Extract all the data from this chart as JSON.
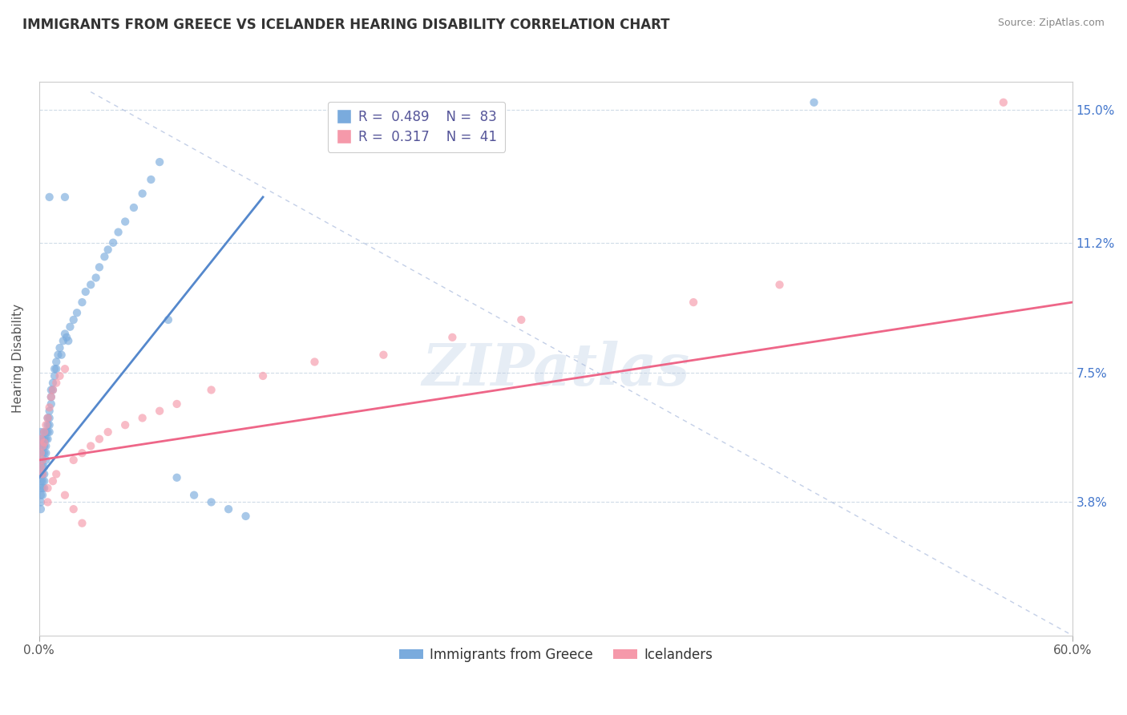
{
  "title": "IMMIGRANTS FROM GREECE VS ICELANDER HEARING DISABILITY CORRELATION CHART",
  "source": "Source: ZipAtlas.com",
  "ylabel": "Hearing Disability",
  "legend_labels": [
    "Immigrants from Greece",
    "Icelanders"
  ],
  "r_blue": 0.489,
  "n_blue": 83,
  "r_pink": 0.317,
  "n_pink": 41,
  "xlim": [
    0.0,
    0.6
  ],
  "ylim": [
    0.0,
    0.158
  ],
  "ytick_labels": [
    "3.8%",
    "7.5%",
    "11.2%",
    "15.0%"
  ],
  "ytick_values": [
    0.038,
    0.075,
    0.112,
    0.15
  ],
  "background_color": "#ffffff",
  "blue_color": "#5588cc",
  "blue_scatter_color": "#7aabdd",
  "pink_color": "#ee6688",
  "pink_scatter_color": "#f599aa",
  "title_fontsize": 12,
  "axis_label_fontsize": 11,
  "tick_fontsize": 11,
  "legend_fontsize": 12,
  "watermark": "ZIPatlas",
  "blue_points_x": [
    0.001,
    0.001,
    0.001,
    0.001,
    0.001,
    0.001,
    0.001,
    0.001,
    0.001,
    0.001,
    0.001,
    0.001,
    0.002,
    0.002,
    0.002,
    0.002,
    0.002,
    0.002,
    0.002,
    0.002,
    0.002,
    0.003,
    0.003,
    0.003,
    0.003,
    0.003,
    0.003,
    0.003,
    0.003,
    0.004,
    0.004,
    0.004,
    0.004,
    0.004,
    0.005,
    0.005,
    0.005,
    0.005,
    0.006,
    0.006,
    0.006,
    0.006,
    0.007,
    0.007,
    0.007,
    0.008,
    0.008,
    0.009,
    0.009,
    0.01,
    0.01,
    0.011,
    0.012,
    0.013,
    0.014,
    0.015,
    0.016,
    0.017,
    0.018,
    0.02,
    0.022,
    0.025,
    0.027,
    0.03,
    0.033,
    0.035,
    0.038,
    0.04,
    0.043,
    0.046,
    0.05,
    0.055,
    0.06,
    0.065,
    0.07,
    0.075,
    0.08,
    0.09,
    0.1,
    0.11,
    0.12,
    0.45,
    0.015,
    0.006
  ],
  "blue_points_y": [
    0.044,
    0.046,
    0.048,
    0.05,
    0.052,
    0.054,
    0.056,
    0.058,
    0.042,
    0.04,
    0.038,
    0.036,
    0.048,
    0.05,
    0.052,
    0.054,
    0.056,
    0.046,
    0.044,
    0.042,
    0.04,
    0.052,
    0.054,
    0.056,
    0.058,
    0.048,
    0.046,
    0.044,
    0.042,
    0.058,
    0.056,
    0.054,
    0.052,
    0.05,
    0.06,
    0.062,
    0.058,
    0.056,
    0.064,
    0.062,
    0.06,
    0.058,
    0.07,
    0.068,
    0.066,
    0.072,
    0.07,
    0.074,
    0.076,
    0.078,
    0.076,
    0.08,
    0.082,
    0.08,
    0.084,
    0.086,
    0.085,
    0.084,
    0.088,
    0.09,
    0.092,
    0.095,
    0.098,
    0.1,
    0.102,
    0.105,
    0.108,
    0.11,
    0.112,
    0.115,
    0.118,
    0.122,
    0.126,
    0.13,
    0.135,
    0.09,
    0.045,
    0.04,
    0.038,
    0.036,
    0.034,
    0.152,
    0.125,
    0.125
  ],
  "pink_points_x": [
    0.001,
    0.001,
    0.001,
    0.002,
    0.002,
    0.002,
    0.003,
    0.003,
    0.004,
    0.005,
    0.006,
    0.007,
    0.008,
    0.01,
    0.012,
    0.015,
    0.02,
    0.025,
    0.03,
    0.035,
    0.04,
    0.05,
    0.06,
    0.07,
    0.08,
    0.1,
    0.13,
    0.16,
    0.2,
    0.24,
    0.28,
    0.38,
    0.43,
    0.005,
    0.005,
    0.008,
    0.01,
    0.015,
    0.02,
    0.025,
    0.56
  ],
  "pink_points_y": [
    0.048,
    0.052,
    0.056,
    0.05,
    0.054,
    0.046,
    0.055,
    0.058,
    0.06,
    0.062,
    0.065,
    0.068,
    0.07,
    0.072,
    0.074,
    0.076,
    0.05,
    0.052,
    0.054,
    0.056,
    0.058,
    0.06,
    0.062,
    0.064,
    0.066,
    0.07,
    0.074,
    0.078,
    0.08,
    0.085,
    0.09,
    0.095,
    0.1,
    0.042,
    0.038,
    0.044,
    0.046,
    0.04,
    0.036,
    0.032,
    0.152
  ],
  "blue_line_x": [
    0.0,
    0.13
  ],
  "blue_line_y": [
    0.045,
    0.125
  ],
  "pink_line_x": [
    0.0,
    0.6
  ],
  "pink_line_y": [
    0.05,
    0.095
  ],
  "diag_line_x": [
    0.03,
    0.6
  ],
  "diag_line_y": [
    0.155,
    0.0
  ]
}
